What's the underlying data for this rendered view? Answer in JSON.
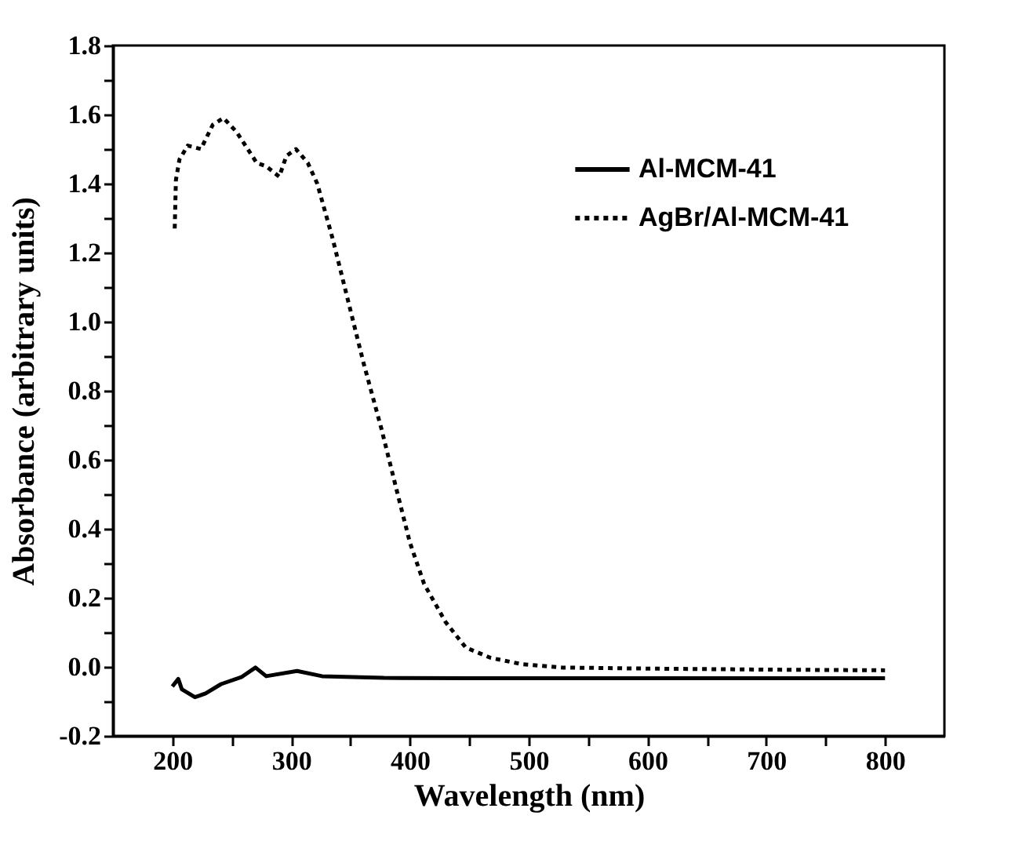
{
  "chart_data": {
    "type": "line",
    "xlabel": "Wavelength (nm)",
    "ylabel": "Absorbance (arbitrary units)",
    "xlim": [
      150,
      850
    ],
    "ylim": [
      -0.2,
      1.8
    ],
    "xticks": [
      200,
      {
        "value": 250,
        "label": null
      },
      300,
      {
        "value": 350,
        "label": null
      },
      400,
      {
        "value": 450,
        "label": null
      },
      500,
      {
        "value": 550,
        "label": null
      },
      600,
      {
        "value": 650,
        "label": null
      },
      700,
      {
        "value": 750,
        "label": null
      },
      800
    ],
    "yticks": [
      {
        "value": -0.2,
        "label": "-0.2"
      },
      {
        "value": -0.1,
        "label": null
      },
      {
        "value": 0,
        "label": "0.0"
      },
      {
        "value": 0.1,
        "label": null
      },
      {
        "value": 0.2,
        "label": "0.2"
      },
      {
        "value": 0.3,
        "label": null
      },
      {
        "value": 0.4,
        "label": "0.4"
      },
      {
        "value": 0.5,
        "label": null
      },
      {
        "value": 0.6,
        "label": "0.6"
      },
      {
        "value": 0.7,
        "label": null
      },
      {
        "value": 0.8,
        "label": "0.8"
      },
      {
        "value": 0.9,
        "label": null
      },
      {
        "value": 1.0,
        "label": "1.0"
      },
      {
        "value": 1.1,
        "label": null
      },
      {
        "value": 1.2,
        "label": "1.2"
      },
      {
        "value": 1.3,
        "label": null
      },
      {
        "value": 1.4,
        "label": "1.4"
      },
      {
        "value": 1.5,
        "label": null
      },
      {
        "value": 1.6,
        "label": "1.6"
      },
      {
        "value": 1.7,
        "label": null
      },
      {
        "value": 1.8,
        "label": "1.8"
      }
    ],
    "legend": "top right",
    "grid": false,
    "series": [
      {
        "name": "Al-MCM-41",
        "color": "#000000",
        "line_style": "solid",
        "x": [
          200,
          205,
          208,
          219,
          228,
          241,
          258,
          270,
          279,
          305,
          326,
          378,
          450,
          550,
          650,
          800
        ],
        "values": [
          -0.057,
          -0.035,
          -0.065,
          -0.088,
          -0.077,
          -0.05,
          -0.03,
          -0.002,
          -0.027,
          -0.012,
          -0.027,
          -0.032,
          -0.033,
          -0.033,
          -0.033,
          -0.033
        ]
      },
      {
        "name": "AgBr/Al-MCM-41",
        "color": "#000000",
        "line_style": "dotted",
        "x": [
          202,
          203,
          206,
          213,
          224,
          234,
          243,
          254,
          271,
          279,
          290,
          296,
          304,
          314,
          322,
          335,
          348,
          361,
          376,
          389,
          400,
          412,
          430,
          447,
          468,
          494,
          528,
          600,
          700,
          800
        ],
        "values": [
          1.27,
          1.41,
          1.47,
          1.51,
          1.5,
          1.57,
          1.59,
          1.55,
          1.46,
          1.45,
          1.42,
          1.48,
          1.5,
          1.46,
          1.4,
          1.24,
          1.06,
          0.88,
          0.69,
          0.51,
          0.36,
          0.24,
          0.13,
          0.056,
          0.026,
          0.008,
          -0.002,
          -0.005,
          -0.008,
          -0.01
        ]
      }
    ]
  }
}
